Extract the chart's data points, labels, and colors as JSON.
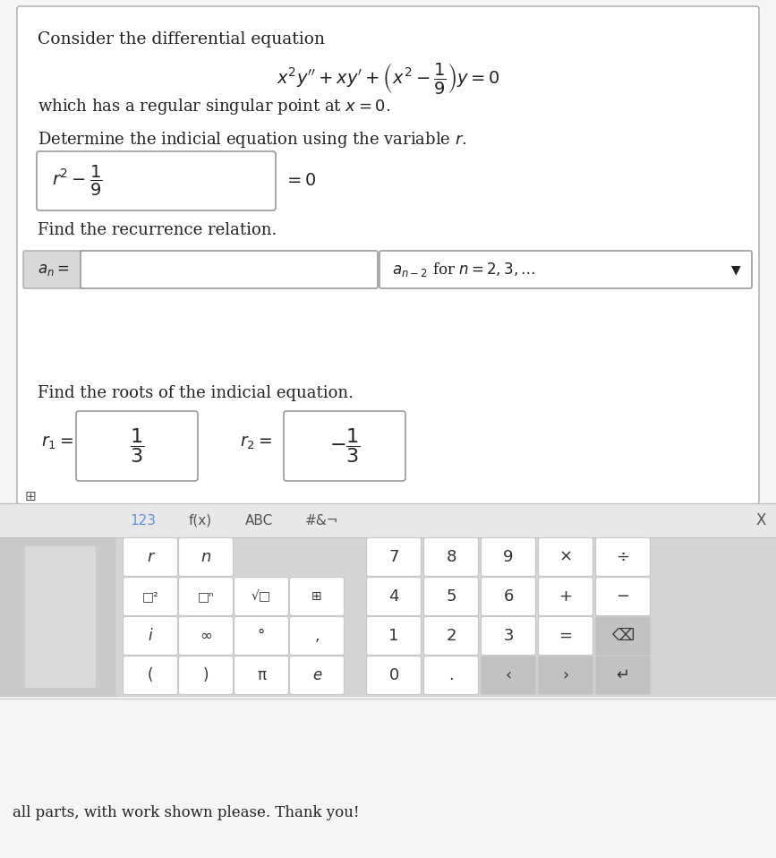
{
  "bg_color": "#f5f5f5",
  "card_bg": "#ffffff",
  "main_text_color": "#222222",
  "gray_label_bg": "#d8d8d8",
  "keyboard_bg": "#d4d4d4",
  "key_bg": "#ffffff",
  "key_bg_dark": "#c2c2c2",
  "blue_text": "#6b8fd4",
  "gray_text": "#555555",
  "title_text": "Consider the differential equation",
  "equation": "$x^2y'' + xy' + \\left(x^2 - \\dfrac{1}{9}\\right)y = 0$",
  "singular_point_text": "which has a regular singular point at $x = 0$.",
  "indicial_label": "Determine the indicial equation using the variable $r$.",
  "indicial_answer": "$r^2 - \\dfrac{1}{9}$",
  "equals_zero": "$= 0$",
  "recurrence_label": "Find the recurrence relation.",
  "an_label": "$a_n =$",
  "recurrence_suffix": "$a_{n-2}$ for $n = 2, 3, \\ldots$",
  "roots_label": "Find the roots of the indicial equation.",
  "r1_label": "$r_1 =$",
  "r1_value": "$\\dfrac{1}{3}$",
  "r2_label": "$r_2 =$",
  "r2_value": "$-\\dfrac{1}{3}$",
  "keyboard_tabs": [
    "123",
    "f(x)",
    "ABC",
    "#&¬"
  ],
  "close_x": "X",
  "bottom_text": "all parts, with work shown please. Thank you!"
}
